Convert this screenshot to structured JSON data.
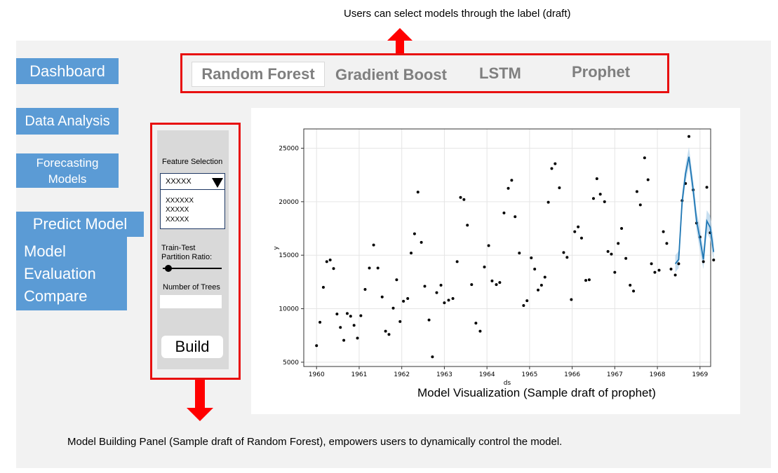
{
  "captions": {
    "top": "Users can select models through the label (draft)",
    "visualization": "Model Visualization (Sample draft of prophet)",
    "bottom": "Model Building Panel (Sample draft of Random Forest), empowers users to dynamically control the model."
  },
  "nav": {
    "dashboard": "Dashboard",
    "data_analysis": "Data Analysis",
    "forecasting_line1": "Forecasting",
    "forecasting_line2": "Models",
    "predict": "Predict Model",
    "eval_line1": "Model",
    "eval_line2": "Evaluation",
    "eval_line3": "Compare"
  },
  "tabs": {
    "random_forest": "Random Forest",
    "gradient_boost": "Gradient Boost",
    "lstm": "LSTM",
    "prophet": "Prophet"
  },
  "panel": {
    "feature_label": "Feature Selection",
    "selected": "XXXXX",
    "options": [
      "XXXXXX",
      "XXXXX",
      "XXXXX"
    ],
    "ratio_label_1": "Train-Test",
    "ratio_label_2": "Partition Ratio:",
    "ratio_value": 0.1,
    "trees_label": "Number of Trees",
    "trees_value": "",
    "build_label": "Build"
  },
  "colors": {
    "nav_bg": "#5b9bd5",
    "highlight_border": "#e81010",
    "arrow": "#ff0000",
    "forecast_line": "#1f77b4",
    "forecast_band": "#aed0ea"
  },
  "chart_data": {
    "type": "scatter",
    "xlabel": "ds",
    "ylabel": "y",
    "xlim": [
      1959.7,
      1969.25
    ],
    "ylim": [
      4600,
      26800
    ],
    "x_ticks": [
      "1960",
      "1961",
      "1962",
      "1963",
      "1964",
      "1965",
      "1966",
      "1967",
      "1968",
      "1969"
    ],
    "y_ticks": [
      "5000",
      "10000",
      "15000",
      "20000",
      "25000"
    ],
    "grid": true,
    "observed": [
      [
        1960.0,
        6550
      ],
      [
        1960.08,
        8730
      ],
      [
        1960.16,
        12000
      ],
      [
        1960.24,
        14400
      ],
      [
        1960.32,
        14550
      ],
      [
        1960.4,
        13750
      ],
      [
        1960.48,
        9500
      ],
      [
        1960.56,
        8250
      ],
      [
        1960.64,
        7050
      ],
      [
        1960.72,
        9550
      ],
      [
        1960.8,
        9300
      ],
      [
        1960.88,
        8450
      ],
      [
        1960.96,
        7250
      ],
      [
        1961.04,
        9350
      ],
      [
        1961.14,
        11800
      ],
      [
        1961.24,
        13800
      ],
      [
        1961.34,
        15950
      ],
      [
        1961.44,
        13800
      ],
      [
        1961.54,
        11100
      ],
      [
        1961.62,
        7900
      ],
      [
        1961.7,
        7600
      ],
      [
        1961.8,
        10050
      ],
      [
        1961.88,
        12700
      ],
      [
        1961.96,
        8800
      ],
      [
        1962.04,
        10700
      ],
      [
        1962.14,
        10950
      ],
      [
        1962.22,
        15200
      ],
      [
        1962.3,
        17000
      ],
      [
        1962.38,
        20900
      ],
      [
        1962.46,
        16200
      ],
      [
        1962.54,
        12100
      ],
      [
        1962.64,
        8950
      ],
      [
        1962.72,
        5500
      ],
      [
        1962.82,
        11500
      ],
      [
        1962.92,
        12200
      ],
      [
        1963.0,
        10550
      ],
      [
        1963.1,
        10800
      ],
      [
        1963.2,
        10950
      ],
      [
        1963.3,
        14400
      ],
      [
        1963.38,
        20400
      ],
      [
        1963.46,
        20200
      ],
      [
        1963.54,
        17800
      ],
      [
        1963.64,
        12250
      ],
      [
        1963.74,
        8650
      ],
      [
        1963.84,
        7900
      ],
      [
        1963.94,
        13900
      ],
      [
        1964.04,
        15900
      ],
      [
        1964.12,
        12600
      ],
      [
        1964.22,
        12250
      ],
      [
        1964.3,
        12450
      ],
      [
        1964.4,
        18950
      ],
      [
        1964.5,
        21250
      ],
      [
        1964.58,
        22000
      ],
      [
        1964.66,
        18600
      ],
      [
        1964.76,
        15200
      ],
      [
        1964.86,
        10300
      ],
      [
        1964.94,
        10750
      ],
      [
        1965.04,
        14750
      ],
      [
        1965.12,
        13700
      ],
      [
        1965.2,
        11750
      ],
      [
        1965.28,
        12200
      ],
      [
        1965.36,
        12950
      ],
      [
        1965.44,
        19950
      ],
      [
        1965.52,
        23100
      ],
      [
        1965.6,
        23550
      ],
      [
        1965.7,
        21300
      ],
      [
        1965.8,
        15250
      ],
      [
        1965.88,
        14800
      ],
      [
        1965.98,
        10850
      ],
      [
        1966.06,
        17200
      ],
      [
        1966.14,
        17650
      ],
      [
        1966.22,
        16600
      ],
      [
        1966.32,
        12650
      ],
      [
        1966.4,
        12700
      ],
      [
        1966.5,
        20300
      ],
      [
        1966.58,
        22150
      ],
      [
        1966.66,
        20700
      ],
      [
        1966.76,
        20000
      ],
      [
        1966.84,
        15350
      ],
      [
        1966.92,
        15100
      ],
      [
        1967.0,
        13400
      ],
      [
        1967.08,
        16100
      ],
      [
        1967.16,
        17500
      ],
      [
        1967.26,
        14700
      ],
      [
        1967.36,
        12200
      ],
      [
        1967.44,
        11650
      ],
      [
        1967.52,
        20950
      ],
      [
        1967.6,
        19700
      ],
      [
        1967.7,
        24100
      ],
      [
        1967.78,
        22050
      ],
      [
        1967.86,
        14200
      ],
      [
        1967.94,
        13400
      ],
      [
        1968.04,
        13600
      ],
      [
        1968.14,
        17200
      ],
      [
        1968.22,
        16100
      ],
      [
        1968.32,
        13700
      ],
      [
        1968.42,
        13150
      ],
      [
        1968.5,
        14200
      ],
      [
        1968.58,
        20100
      ],
      [
        1968.66,
        21700
      ],
      [
        1968.74,
        26100
      ],
      [
        1968.84,
        21100
      ],
      [
        1968.92,
        18000
      ],
      [
        1969.0,
        16700
      ],
      [
        1969.08,
        14400
      ],
      [
        1969.16,
        21350
      ],
      [
        1969.24,
        17100
      ],
      [
        1969.32,
        14550
      ]
    ],
    "forecast": [
      [
        1968.42,
        14200
      ],
      [
        1968.5,
        14600
      ],
      [
        1968.58,
        20000
      ],
      [
        1968.66,
        22600
      ],
      [
        1968.74,
        24200
      ],
      [
        1968.84,
        21100
      ],
      [
        1968.92,
        18200
      ],
      [
        1969.0,
        16500
      ],
      [
        1969.08,
        14600
      ],
      [
        1969.16,
        18200
      ],
      [
        1969.24,
        17600
      ],
      [
        1969.32,
        15300
      ]
    ],
    "forecast_upper": [
      [
        1968.42,
        15000
      ],
      [
        1968.5,
        15400
      ],
      [
        1968.58,
        20800
      ],
      [
        1968.66,
        23400
      ],
      [
        1968.74,
        25100
      ],
      [
        1968.84,
        22000
      ],
      [
        1968.92,
        19100
      ],
      [
        1969.0,
        17600
      ],
      [
        1969.08,
        15500
      ],
      [
        1969.16,
        19200
      ],
      [
        1969.24,
        18700
      ],
      [
        1969.32,
        16300
      ]
    ],
    "forecast_lower": [
      [
        1968.42,
        13400
      ],
      [
        1968.5,
        13800
      ],
      [
        1968.58,
        19100
      ],
      [
        1968.66,
        21800
      ],
      [
        1968.74,
        23300
      ],
      [
        1968.84,
        20200
      ],
      [
        1968.92,
        17300
      ],
      [
        1969.0,
        15400
      ],
      [
        1969.08,
        13700
      ],
      [
        1969.16,
        17100
      ],
      [
        1969.24,
        16500
      ],
      [
        1969.32,
        14400
      ]
    ]
  }
}
